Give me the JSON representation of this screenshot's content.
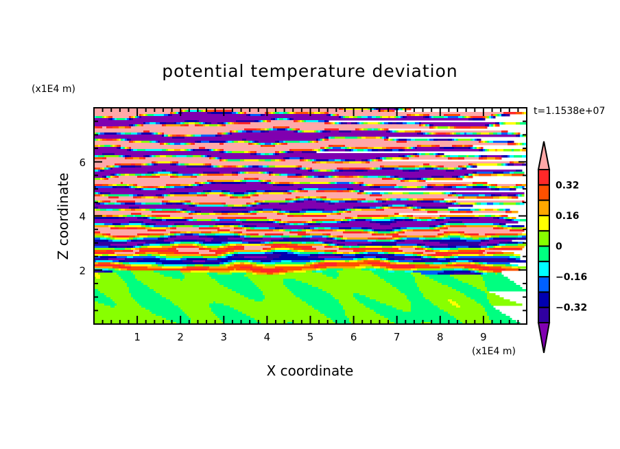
{
  "chart_data": {
    "type": "heatmap",
    "subtype": "filled-contour",
    "title": "potential temperature deviation",
    "xlabel": "X coordinate",
    "ylabel": "Z coordinate",
    "x_scale_label": "(x1E4 m)",
    "y_scale_label": "(x1E4 m)",
    "time_label": "t=1.1538e+07",
    "xlim": [
      0,
      10
    ],
    "ylim": [
      0,
      8
    ],
    "x_ticks": [
      "1",
      "2",
      "3",
      "4",
      "5",
      "6",
      "7",
      "8",
      "9"
    ],
    "y_ticks": [
      "2",
      "4",
      "6"
    ],
    "grid": false,
    "colorbar": {
      "placement": "right",
      "levels": [
        -0.4,
        -0.32,
        -0.24,
        -0.16,
        -0.08,
        0,
        0.08,
        0.16,
        0.24,
        0.32,
        0.4
      ],
      "tick_labels": [
        "0.32",
        "0.16",
        "0",
        "−0.16",
        "−0.32"
      ],
      "tick_values": [
        0.32,
        0.16,
        0,
        -0.16,
        -0.32
      ],
      "extend": "both",
      "colors_low_to_high": [
        "#8000b0",
        "#3000a0",
        "#0000b0",
        "#0060ff",
        "#00ffff",
        "#00ff80",
        "#88ff00",
        "#ffff00",
        "#ffa800",
        "#ff5000",
        "#ff2828",
        "#ffa8a8"
      ]
    },
    "description_of_field": "near-uniform values around 0 below z≈1.9, layered horizontal bands alternating strongly negative and strongly positive above"
  }
}
